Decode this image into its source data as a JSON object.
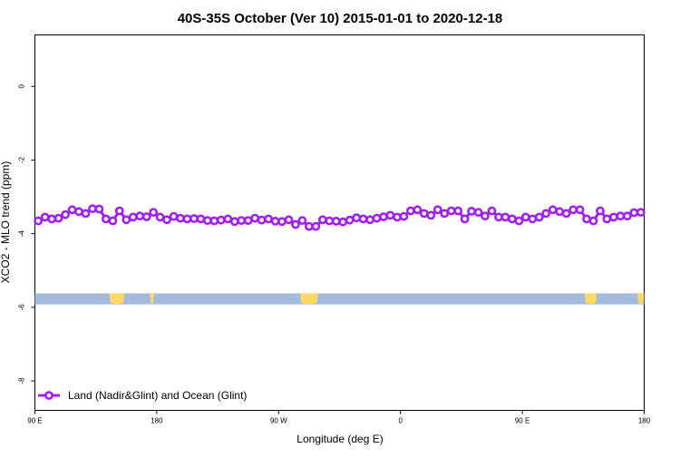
{
  "chart_data": {
    "type": "line",
    "title": "40S-35S October (Ver 10)   2015-01-01 to 2020-12-18",
    "xlabel": "Longitude (deg E)",
    "ylabel": "XCO2 - MLO trend (ppm)",
    "x_ticks": [
      {
        "value": 90,
        "label": "90 E"
      },
      {
        "value": 180,
        "label": "180"
      },
      {
        "value": 270,
        "label": "90 W"
      },
      {
        "value": 360,
        "label": "0"
      },
      {
        "value": 450,
        "label": "90 E"
      },
      {
        "value": 540,
        "label": "180"
      }
    ],
    "y_ticks": [
      {
        "value": 0,
        "label": "0"
      },
      {
        "value": -2,
        "label": "-2"
      },
      {
        "value": -4,
        "label": "-4"
      },
      {
        "value": -6,
        "label": "-6"
      },
      {
        "value": -8,
        "label": "-8"
      }
    ],
    "xlim": [
      90,
      540
    ],
    "ylim": [
      -8.8,
      1.4
    ],
    "grid": false,
    "legend_position": "bottom-left",
    "colors": {
      "series": "#a020f0",
      "ocean_band": "#a4bbdd",
      "land": "#ffd966"
    },
    "series": [
      {
        "name": "Land (Nadir&Glint) and Ocean (Glint)",
        "x": [
          92.5,
          97.5,
          102.5,
          107.5,
          112.5,
          117.5,
          122.5,
          127.5,
          132.5,
          137.5,
          142.5,
          147.5,
          152.5,
          157.5,
          162.5,
          167.5,
          172.5,
          177.5,
          182.5,
          187.5,
          192.5,
          197.5,
          202.5,
          207.5,
          212.5,
          217.5,
          222.5,
          227.5,
          232.5,
          237.5,
          242.5,
          247.5,
          252.5,
          257.5,
          262.5,
          267.5,
          272.5,
          277.5,
          282.5,
          287.5,
          292.5,
          297.5,
          302.5,
          307.5,
          312.5,
          317.5,
          322.5,
          327.5,
          332.5,
          337.5,
          342.5,
          347.5,
          352.5,
          357.5,
          362.5,
          367.5,
          372.5,
          377.5,
          382.5,
          387.5,
          392.5,
          397.5,
          402.5,
          407.5,
          412.5,
          417.5,
          422.5,
          427.5,
          432.5,
          437.5,
          442.5,
          447.5,
          452.5,
          457.5,
          462.5,
          467.5,
          472.5,
          477.5,
          482.5,
          487.5,
          492.5,
          497.5,
          502.5,
          507.5,
          512.5,
          517.5,
          522.5,
          527.5,
          532.5,
          537.5
        ],
        "y": [
          -3.65,
          -3.55,
          -3.6,
          -3.58,
          -3.48,
          -3.35,
          -3.4,
          -3.45,
          -3.32,
          -3.33,
          -3.6,
          -3.65,
          -3.38,
          -3.62,
          -3.55,
          -3.52,
          -3.54,
          -3.42,
          -3.55,
          -3.62,
          -3.53,
          -3.58,
          -3.6,
          -3.59,
          -3.6,
          -3.64,
          -3.65,
          -3.63,
          -3.6,
          -3.67,
          -3.64,
          -3.64,
          -3.58,
          -3.63,
          -3.6,
          -3.66,
          -3.67,
          -3.62,
          -3.75,
          -3.64,
          -3.8,
          -3.8,
          -3.62,
          -3.65,
          -3.66,
          -3.68,
          -3.63,
          -3.57,
          -3.6,
          -3.62,
          -3.58,
          -3.54,
          -3.5,
          -3.55,
          -3.53,
          -3.38,
          -3.35,
          -3.45,
          -3.5,
          -3.35,
          -3.45,
          -3.38,
          -3.38,
          -3.6,
          -3.39,
          -3.42,
          -3.52,
          -3.38,
          -3.55,
          -3.55,
          -3.6,
          -3.65,
          -3.55,
          -3.6,
          -3.55,
          -3.45,
          -3.35,
          -3.4,
          -3.45,
          -3.35,
          -3.35,
          -3.6,
          -3.65,
          -3.38,
          -3.6,
          -3.55,
          -3.52,
          -3.52,
          -3.43,
          -3.42
        ]
      }
    ],
    "ocean_band": {
      "y_top": -5.62,
      "y_bottom": -5.92
    },
    "land_patches": [
      {
        "x_start": 145,
        "x_end": 156
      },
      {
        "x_start": 175,
        "x_end": 178
      },
      {
        "x_start": 286,
        "x_end": 299
      },
      {
        "x_start": 496,
        "x_end": 505
      },
      {
        "x_start": 535,
        "x_end": 540
      }
    ]
  }
}
